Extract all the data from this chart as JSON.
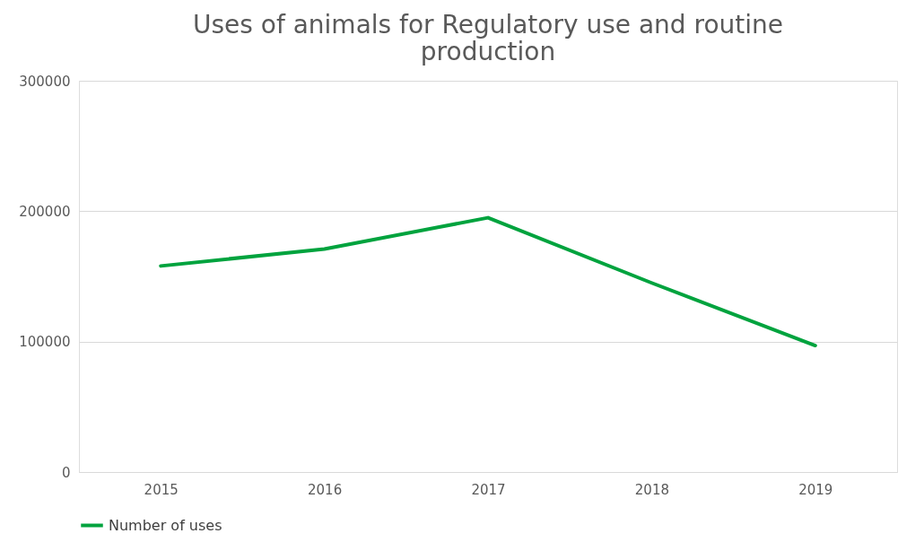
{
  "chart_data": {
    "type": "line",
    "title": "Uses of animals for Regulatory use and routine production",
    "categories": [
      "2015",
      "2016",
      "2017",
      "2018",
      "2019"
    ],
    "series": [
      {
        "name": "Number of uses",
        "color": "#00a33e",
        "values": [
          158000,
          171000,
          195000,
          145000,
          97000
        ]
      }
    ],
    "ylim": [
      0,
      300000
    ],
    "yticks": [
      0,
      100000,
      200000,
      300000
    ],
    "grid": "y",
    "legend": "bottom",
    "marker": "none",
    "line_style": "solid"
  }
}
